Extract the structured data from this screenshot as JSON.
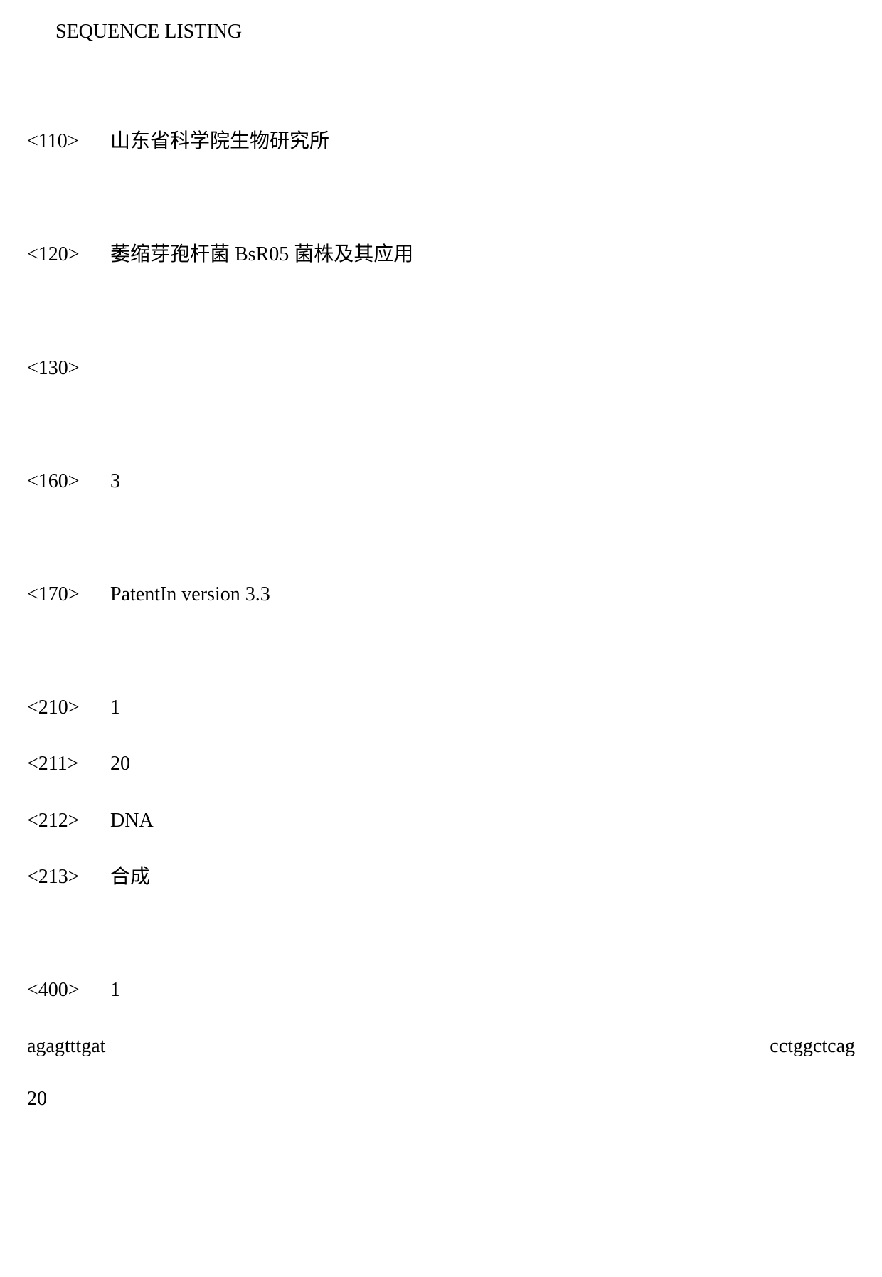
{
  "title": "SEQUENCE LISTING",
  "entries": {
    "applicant": {
      "tag": "<110>",
      "value": "山东省科学院生物研究所"
    },
    "invention_title": {
      "tag": "<120>",
      "value": "萎缩芽孢杆菌 BsR05 菌株及其应用"
    },
    "file_ref": {
      "tag": "<130>",
      "value": ""
    },
    "num_sequences": {
      "tag": "<160>",
      "value": "3"
    },
    "software": {
      "tag": "<170>",
      "value": "PatentIn version 3.3"
    },
    "seq_id": {
      "tag": "<210>",
      "value": "1"
    },
    "seq_length": {
      "tag": "<211>",
      "value": "20"
    },
    "mol_type": {
      "tag": "<212>",
      "value": "DNA"
    },
    "organism": {
      "tag": "<213>",
      "value": "合成"
    },
    "sequence_marker": {
      "tag": "<400>",
      "value": "1"
    }
  },
  "sequence": {
    "left": "agagtttgat",
    "right": "cctggctcag",
    "count": "20"
  }
}
